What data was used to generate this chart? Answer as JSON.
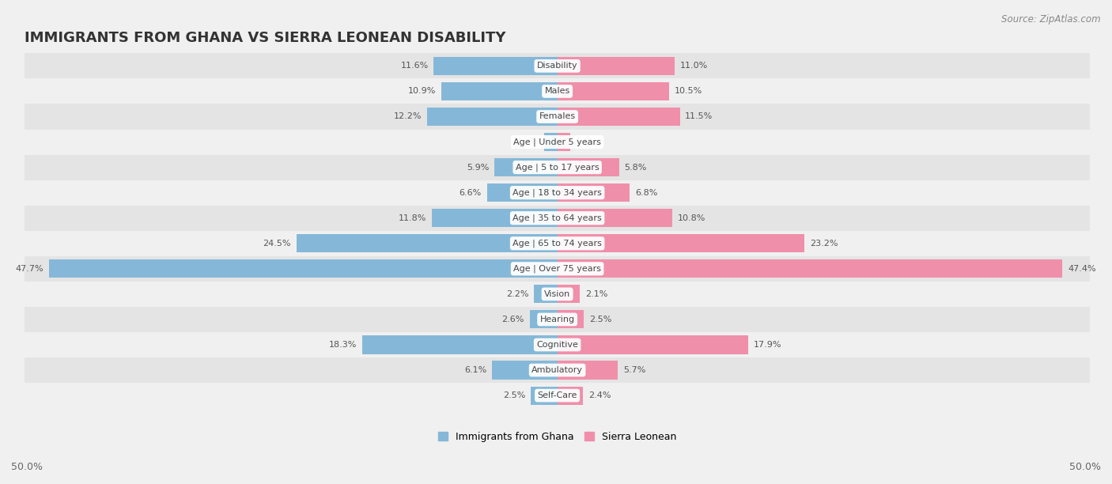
{
  "title": "IMMIGRANTS FROM GHANA VS SIERRA LEONEAN DISABILITY",
  "source": "Source: ZipAtlas.com",
  "categories": [
    "Disability",
    "Males",
    "Females",
    "Age | Under 5 years",
    "Age | 5 to 17 years",
    "Age | 18 to 34 years",
    "Age | 35 to 64 years",
    "Age | 65 to 74 years",
    "Age | Over 75 years",
    "Vision",
    "Hearing",
    "Cognitive",
    "Ambulatory",
    "Self-Care"
  ],
  "ghana_values": [
    11.6,
    10.9,
    12.2,
    1.2,
    5.9,
    6.6,
    11.8,
    24.5,
    47.7,
    2.2,
    2.6,
    18.3,
    6.1,
    2.5
  ],
  "sierra_values": [
    11.0,
    10.5,
    11.5,
    1.2,
    5.8,
    6.8,
    10.8,
    23.2,
    47.4,
    2.1,
    2.5,
    17.9,
    5.7,
    2.4
  ],
  "ghana_color": "#85b8d8",
  "sierra_color": "#f08faa",
  "bar_height": 0.72,
  "x_axis_label_left": "50.0%",
  "x_axis_label_right": "50.0%",
  "bg_color": "#f0f0f0",
  "row_bg_odd": "#e4e4e4",
  "row_bg_even": "#f0f0f0",
  "title_fontsize": 13,
  "source_fontsize": 8.5,
  "category_fontsize": 8,
  "value_fontsize": 8,
  "legend_fontsize": 9
}
